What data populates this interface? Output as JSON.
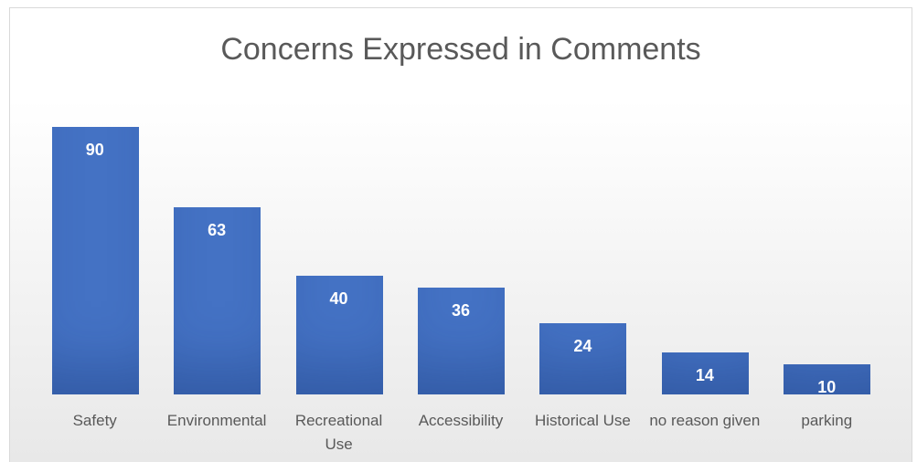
{
  "chart_data": {
    "type": "bar",
    "title": "Concerns Expressed in Comments",
    "categories": [
      "Safety",
      "Environmental",
      "Recreational Use",
      "Accessibility",
      "Historical Use",
      "no reason given",
      "parking"
    ],
    "values": [
      90,
      63,
      40,
      36,
      24,
      14,
      10
    ],
    "color": "#4472c4"
  }
}
